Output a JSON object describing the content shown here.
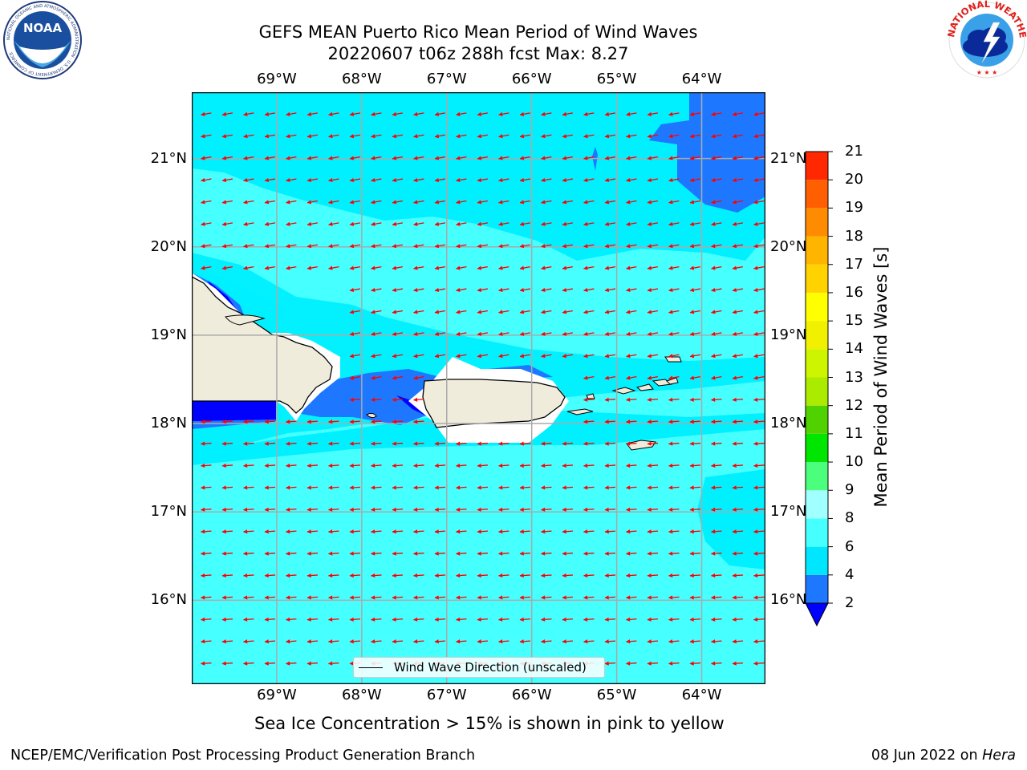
{
  "title": {
    "line1": "GEFS MEAN Puerto Rico Mean Period of Wind Waves",
    "line2": "20220607 t06z 288h fcst   Max: 8.27"
  },
  "logos": {
    "noaa": "NOAA",
    "noaa_ring": "NATIONAL OCEANIC AND ATMOSPHERIC ADMINISTRATION · U.S. DEPARTMENT OF COMMERCE",
    "nws_ring": "NATIONAL WEATHER SERVICE"
  },
  "map": {
    "lon_ticks": [
      "69°W",
      "68°W",
      "67°W",
      "66°W",
      "65°W",
      "64°W"
    ],
    "lat_ticks": [
      "21°N",
      "20°N",
      "19°N",
      "18°N",
      "17°N",
      "16°N"
    ],
    "lon_range": [
      -70.0,
      -63.25
    ],
    "lat_range": [
      15.05,
      21.75
    ],
    "arrow_color": "#ff0000",
    "coast_color": "#000000",
    "land_color": "#efecdc",
    "grid_color": "#aaaaaa",
    "arrow_direction": "from east-northeast toward west-southwest",
    "legend_label": "Wind Wave Direction (unscaled)"
  },
  "colorbar": {
    "title": "Mean Period of Wind Waves [s]",
    "ticks": [
      "2",
      "4",
      "6",
      "8",
      "9",
      "10",
      "11",
      "12",
      "13",
      "14",
      "15",
      "16",
      "17",
      "18",
      "19",
      "20",
      "21"
    ],
    "colors": [
      "#1e78ff",
      "#00e6ff",
      "#46ffff",
      "#a0ffff",
      "#4bff7d",
      "#00e600",
      "#50d200",
      "#aaeb00",
      "#cdf500",
      "#f0f000",
      "#ffff00",
      "#ffd200",
      "#ffb400",
      "#ff8c00",
      "#ff5f00",
      "#ff2800",
      "#ff0000"
    ],
    "under_color": "#0000ff"
  },
  "sea_ice_note": "Sea Ice Concentration > 15% is shown in pink to yellow",
  "footer": {
    "left": "NCEP/EMC/Verification Post Processing Product Generation Branch",
    "date": "08 Jun 2022 on",
    "host": "Hera"
  }
}
